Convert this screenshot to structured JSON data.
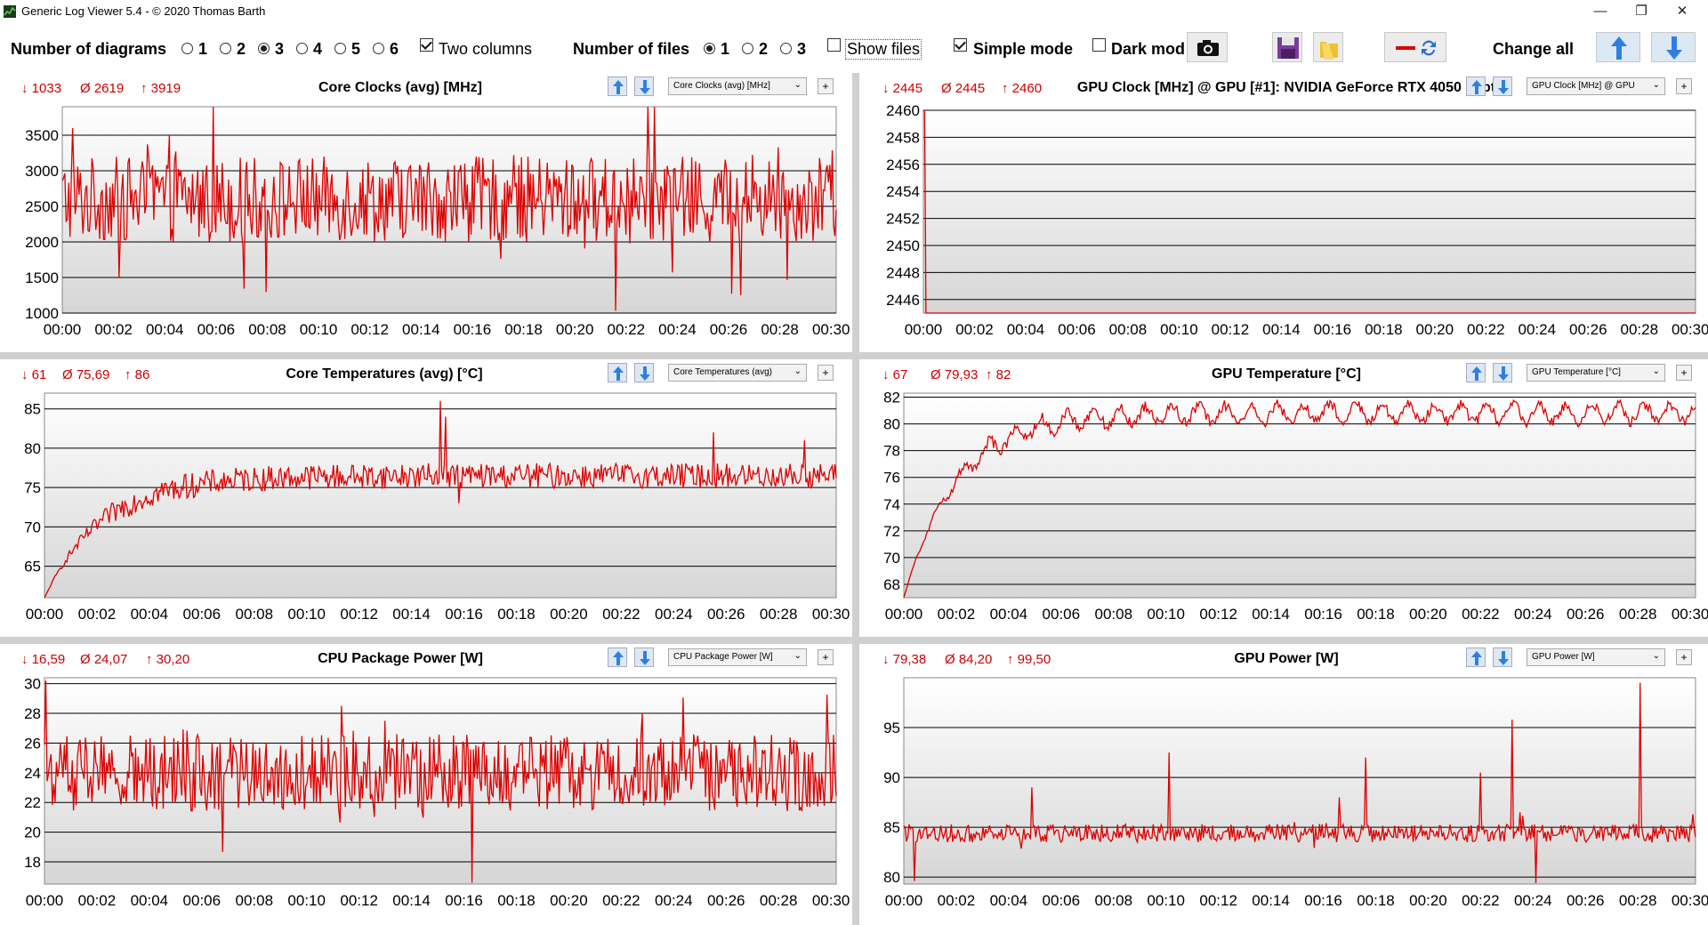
{
  "window": {
    "title": "Generic Log Viewer 5.4 - © 2020 Thomas Barth",
    "minimize": "—",
    "restore": "❐",
    "close": "✕"
  },
  "toolbar": {
    "num_diagrams_label": "Number of diagrams",
    "diagram_options": [
      "1",
      "2",
      "3",
      "4",
      "5",
      "6"
    ],
    "diagram_selected": "3",
    "two_columns_label": "Two columns",
    "two_columns_checked": true,
    "num_files_label": "Number of files",
    "file_options": [
      "1",
      "2",
      "3"
    ],
    "file_selected": "1",
    "show_files_label": "Show files",
    "show_files_checked": false,
    "simple_mode_label": "Simple mode",
    "simple_mode_checked": true,
    "dark_mode_label": "Dark mod",
    "dark_mode_checked": false,
    "change_all_label": "Change all",
    "icons": [
      "camera-icon",
      "save-icon",
      "folder-icon",
      "line-swap-icon",
      "arrow-up-icon",
      "arrow-down-icon"
    ]
  },
  "x_ticks": [
    "00:00",
    "00:02",
    "00:04",
    "00:06",
    "00:08",
    "00:10",
    "00:12",
    "00:14",
    "00:16",
    "00:18",
    "00:20",
    "00:22",
    "00:24",
    "00:26",
    "00:28",
    "00:30"
  ],
  "colors": {
    "line": "#dd0000",
    "stat": "#cc0000",
    "grid": "#000000"
  },
  "panels": [
    {
      "id": "core-clocks",
      "title": "Core Clocks (avg) [MHz]",
      "min": "↓ 1033",
      "avg": "Ø 2619",
      "max": "↑ 3919",
      "dropdown": "Core Clocks (avg) [MHz]",
      "y_ticks": [
        "3500",
        "3000",
        "2500",
        "2000",
        "1500",
        "1000"
      ],
      "chart_data": {
        "type": "line",
        "ylim": [
          1000,
          3900
        ],
        "x_range_minutes": [
          0,
          30.2
        ],
        "base": 2600,
        "amp": 600,
        "spikes": [
          [
            23.1,
            3919
          ],
          [
            21.6,
            1033
          ],
          [
            26.5,
            1250
          ],
          [
            2.2,
            1500
          ],
          [
            0.4,
            3600
          ],
          [
            4.2,
            3500
          ]
        ],
        "min": 1033,
        "avg": 2619,
        "max": 3919
      }
    },
    {
      "id": "gpu-clock",
      "title": "GPU Clock [MHz] @ GPU [#1]: NVIDIA GeForce RTX 4050 Lapt",
      "min": "↓ 2445",
      "avg": "Ø 2445",
      "max": "↑ 2460",
      "dropdown": "GPU Clock [MHz] @ GPU",
      "y_ticks": [
        "2460",
        "2458",
        "2456",
        "2454",
        "2452",
        "2450",
        "2448",
        "2446"
      ],
      "chart_data": {
        "type": "line",
        "ylim": [
          2445,
          2460
        ],
        "x_range_minutes": [
          0,
          30.2
        ],
        "base": 2445,
        "amp": 0,
        "spikes": [
          [
            0.05,
            2460
          ]
        ],
        "min": 2445,
        "avg": 2445,
        "max": 2460
      }
    },
    {
      "id": "core-temps",
      "title": "Core Temperatures (avg) [°C]",
      "min": "↓ 61",
      "avg": "Ø 75,69",
      "max": "↑ 86",
      "dropdown": "Core Temperatures (avg)",
      "y_ticks": [
        "85",
        "80",
        "75",
        "70",
        "65"
      ],
      "chart_data": {
        "type": "line",
        "ylim": [
          61,
          87
        ],
        "x_range_minutes": [
          0,
          30.2
        ],
        "warmup": {
          "start": 61,
          "plateau": 76.5,
          "tau": 2.2
        },
        "amp": 1.6,
        "spikes": [
          [
            15.1,
            86
          ],
          [
            15.3,
            84
          ],
          [
            25.5,
            82
          ],
          [
            29.0,
            81
          ],
          [
            15.8,
            73
          ]
        ],
        "min": 61,
        "avg": 75.69,
        "max": 86
      }
    },
    {
      "id": "gpu-temp",
      "title": "GPU Temperature [°C]",
      "min": "↓ 67",
      "avg": "Ø 79,93",
      "max": "↑ 82",
      "dropdown": "GPU Temperature [°C]",
      "y_ticks": [
        "82",
        "80",
        "78",
        "76",
        "74",
        "72",
        "70",
        "68"
      ],
      "chart_data": {
        "type": "line",
        "ylim": [
          67,
          82.3
        ],
        "x_range_minutes": [
          0,
          30.2
        ],
        "warmup": {
          "start": 67,
          "plateau": 80.8,
          "tau": 2.0
        },
        "amp": 0.8,
        "wave_period_min": 1.0,
        "spikes": [],
        "min": 67,
        "avg": 79.93,
        "max": 82
      }
    },
    {
      "id": "cpu-power",
      "title": "CPU Package Power [W]",
      "min": "↓ 16,59",
      "avg": "Ø 24,07",
      "max": "↑ 30,20",
      "dropdown": "CPU Package Power [W]",
      "y_ticks": [
        "30",
        "28",
        "26",
        "24",
        "22",
        "20",
        "18"
      ],
      "chart_data": {
        "type": "line",
        "ylim": [
          16.5,
          30.4
        ],
        "x_range_minutes": [
          0,
          30.2
        ],
        "base": 24.0,
        "amp": 2.6,
        "spikes": [
          [
            0.05,
            30.2
          ],
          [
            16.3,
            16.59
          ],
          [
            22.8,
            28
          ],
          [
            13.0,
            27.5
          ]
        ],
        "min": 16.59,
        "avg": 24.07,
        "max": 30.2
      }
    },
    {
      "id": "gpu-power",
      "title": "GPU Power [W]",
      "min": "↓ 79,38",
      "avg": "Ø 84,20",
      "max": "↑ 99,50",
      "dropdown": "GPU Power [W]",
      "y_ticks": [
        "95",
        "90",
        "85",
        "80"
      ],
      "chart_data": {
        "type": "line",
        "ylim": [
          79.3,
          100
        ],
        "x_range_minutes": [
          0,
          30.2
        ],
        "base": 84.4,
        "amp": 0.9,
        "spikes": [
          [
            28.1,
            99.5
          ],
          [
            23.2,
            95.8
          ],
          [
            10.1,
            92.5
          ],
          [
            17.6,
            92
          ],
          [
            22.0,
            90.5
          ],
          [
            4.9,
            89
          ],
          [
            16.6,
            88
          ],
          [
            24.1,
            79.4
          ],
          [
            0.4,
            79.6
          ]
        ],
        "min": 79.38,
        "avg": 84.2,
        "max": 99.5
      }
    }
  ]
}
